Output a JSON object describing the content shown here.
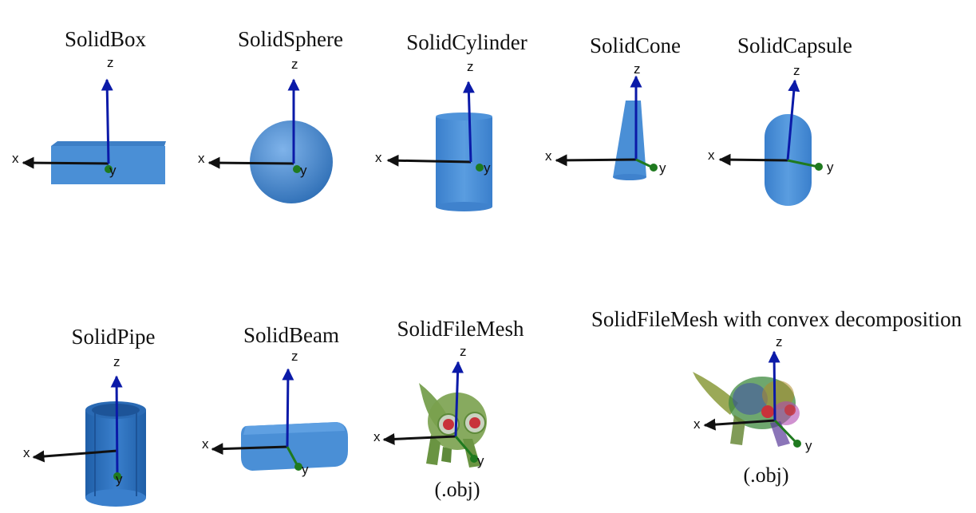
{
  "axis_labels": {
    "x": "x",
    "y": "y",
    "z": "z"
  },
  "colors": {
    "solid_blue": "#4a8fd6",
    "solid_blue_dark": "#2e6fb8",
    "z_axis": "#0b1aa8",
    "x_axis": "#111111",
    "y_axis": "#1f7a1f",
    "mesh_green": "#6f9a45"
  },
  "shapes": [
    {
      "id": "box",
      "title": "SolidBox",
      "caption": ""
    },
    {
      "id": "sphere",
      "title": "SolidSphere",
      "caption": ""
    },
    {
      "id": "cylinder",
      "title": "SolidCylinder",
      "caption": ""
    },
    {
      "id": "cone",
      "title": "SolidCone",
      "caption": ""
    },
    {
      "id": "capsule",
      "title": "SolidCapsule",
      "caption": ""
    },
    {
      "id": "pipe",
      "title": "SolidPipe",
      "caption": ""
    },
    {
      "id": "beam",
      "title": "SolidBeam",
      "caption": ""
    },
    {
      "id": "filemesh",
      "title": "SolidFileMesh",
      "caption": "(.obj)"
    },
    {
      "id": "filemesh_convex",
      "title": "SolidFileMesh with convex decomposition",
      "caption": "(.obj)"
    }
  ]
}
